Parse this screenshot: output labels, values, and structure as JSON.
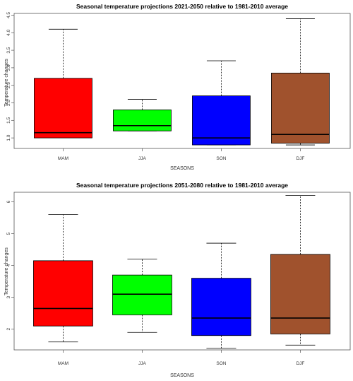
{
  "colors": {
    "MAM": "#ff0000",
    "JJA": "#00ff00",
    "SON": "#0000ff",
    "DJF": "#a0522d"
  },
  "chart_data": [
    {
      "type": "box",
      "title": "Seasonal temperature projections 2021-2050 relative to 1981-2010 average",
      "xlabel": "SEASONS",
      "ylabel": "Temperature changes",
      "ylim": [
        0.7,
        4.55
      ],
      "yticks": [
        "1.0",
        "1.5",
        "2.0",
        "2.5",
        "3.0",
        "3.5",
        "4.0",
        "4.5"
      ],
      "ytick_values": [
        1.0,
        1.5,
        2.0,
        2.5,
        3.0,
        3.5,
        4.0,
        4.5
      ],
      "categories": [
        "MAM",
        "JJA",
        "SON",
        "DJF"
      ],
      "boxes": [
        {
          "name": "MAM",
          "min": 1.0,
          "q1": 1.0,
          "median": 1.15,
          "q3": 2.7,
          "max": 4.1
        },
        {
          "name": "JJA",
          "min": 1.2,
          "q1": 1.2,
          "median": 1.35,
          "q3": 1.8,
          "max": 2.1
        },
        {
          "name": "SON",
          "min": 0.8,
          "q1": 0.8,
          "median": 1.0,
          "q3": 2.2,
          "max": 3.2
        },
        {
          "name": "DJF",
          "min": 0.8,
          "q1": 0.85,
          "median": 1.1,
          "q3": 2.85,
          "max": 4.4
        }
      ]
    },
    {
      "type": "box",
      "title": "Seasonal temperature projections 2051-2080 relative to 1981-2010 average",
      "xlabel": "SEASONS",
      "ylabel": "Temperature changes",
      "ylim": [
        1.35,
        6.3
      ],
      "yticks": [
        "2",
        "3",
        "4",
        "5",
        "6"
      ],
      "ytick_values": [
        2,
        3,
        4,
        5,
        6
      ],
      "categories": [
        "MAM",
        "JJA",
        "SON",
        "DJF"
      ],
      "boxes": [
        {
          "name": "MAM",
          "min": 1.6,
          "q1": 2.1,
          "median": 2.65,
          "q3": 4.15,
          "max": 5.6
        },
        {
          "name": "JJA",
          "min": 1.9,
          "q1": 2.45,
          "median": 3.1,
          "q3": 3.7,
          "max": 4.2
        },
        {
          "name": "SON",
          "min": 1.4,
          "q1": 1.8,
          "median": 2.35,
          "q3": 3.6,
          "max": 4.7
        },
        {
          "name": "DJF",
          "min": 1.5,
          "q1": 1.85,
          "median": 2.35,
          "q3": 4.35,
          "max": 6.2
        }
      ]
    }
  ]
}
